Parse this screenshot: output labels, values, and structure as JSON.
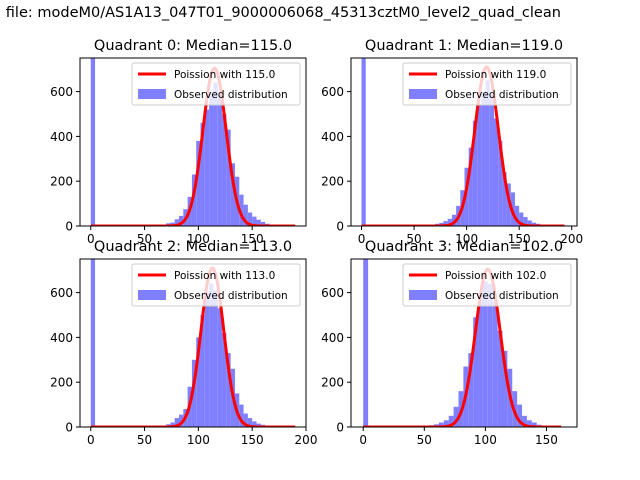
{
  "suptitle": "n file: modeM0/AS1A13_047T01_9000006068_45313cztM0_level2_quad_clean",
  "colors": {
    "poisson": "#ff0000",
    "observed": "#7f7fff",
    "axis": "#000000"
  },
  "chart_data": [
    {
      "type": "bar",
      "title": "Quadrant 0: Median=115.0",
      "legend": [
        "Poission with 115.0",
        "Observed distribution"
      ],
      "legend_position": "top-right",
      "xlim": [
        -10,
        200
      ],
      "ylim": [
        0,
        750
      ],
      "xticks": [
        0,
        50,
        100,
        150
      ],
      "yticks": [
        0,
        200,
        400,
        600
      ],
      "spike": {
        "x": 0,
        "value": 760
      },
      "median": 115,
      "peak": 705,
      "sigma": 10.8,
      "obs": {
        "x": [
          66,
          70,
          74,
          78,
          82,
          86,
          90,
          94,
          98,
          102,
          106,
          110,
          114,
          118,
          122,
          126,
          130,
          134,
          138,
          142,
          146,
          150,
          154,
          158,
          162,
          166,
          170,
          174,
          178,
          182,
          186
        ],
        "values": [
          5,
          12,
          15,
          30,
          45,
          75,
          130,
          230,
          380,
          460,
          520,
          600,
          640,
          600,
          500,
          430,
          280,
          220,
          140,
          95,
          60,
          42,
          28,
          18,
          10,
          6,
          4,
          3,
          2,
          2,
          1
        ]
      },
      "curve_xmax": 190
    },
    {
      "type": "bar",
      "title": "Quadrant 1: Median=119.0",
      "legend": [
        "Poission with 119.0",
        "Observed distribution"
      ],
      "legend_position": "top-right",
      "xlim": [
        -10,
        205
      ],
      "ylim": [
        0,
        750
      ],
      "xticks": [
        0,
        50,
        100,
        150,
        200
      ],
      "yticks": [
        0,
        200,
        400,
        600
      ],
      "spike": {
        "x": 0,
        "value": 760
      },
      "median": 119,
      "peak": 710,
      "sigma": 11.2,
      "obs": {
        "x": [
          66,
          70,
          74,
          78,
          82,
          86,
          90,
          94,
          98,
          102,
          106,
          110,
          114,
          118,
          122,
          126,
          130,
          134,
          138,
          142,
          146,
          150,
          154,
          158,
          162,
          166,
          170,
          174,
          178,
          182,
          186,
          190
        ],
        "values": [
          5,
          10,
          14,
          22,
          32,
          50,
          90,
          160,
          260,
          350,
          470,
          540,
          600,
          650,
          590,
          480,
          380,
          240,
          190,
          150,
          90,
          60,
          40,
          25,
          15,
          10,
          6,
          4,
          3,
          2,
          1,
          1
        ]
      },
      "curve_xmax": 193
    },
    {
      "type": "bar",
      "title": "Quadrant 2: Median=113.0",
      "legend": [
        "Poission with 113.0",
        "Observed distribution"
      ],
      "legend_position": "top-right",
      "xlim": [
        -10,
        200
      ],
      "ylim": [
        0,
        750
      ],
      "xticks": [
        0,
        50,
        100,
        150,
        200
      ],
      "yticks": [
        0,
        200,
        400,
        600
      ],
      "spike": {
        "x": 0,
        "value": 760
      },
      "median": 113,
      "peak": 710,
      "sigma": 10.6,
      "obs": {
        "x": [
          66,
          70,
          74,
          78,
          82,
          86,
          90,
          94,
          98,
          102,
          106,
          110,
          114,
          118,
          122,
          126,
          130,
          134,
          138,
          142,
          146,
          150,
          154,
          158,
          162,
          166,
          170,
          174,
          178,
          182,
          186
        ],
        "values": [
          5,
          12,
          20,
          40,
          55,
          80,
          180,
          300,
          400,
          500,
          600,
          640,
          610,
          530,
          420,
          330,
          260,
          150,
          100,
          60,
          40,
          25,
          15,
          10,
          6,
          4,
          3,
          2,
          2,
          1,
          1
        ]
      },
      "curve_xmax": 190
    },
    {
      "type": "bar",
      "title": "Quadrant 3: Median=102.0",
      "legend": [
        "Poission with 102.0",
        "Observed distribution"
      ],
      "legend_position": "top-right",
      "xlim": [
        -10,
        175
      ],
      "ylim": [
        0,
        750
      ],
      "xticks": [
        0,
        50,
        100,
        150
      ],
      "yticks": [
        0,
        200,
        400,
        600
      ],
      "spike": {
        "x": 0,
        "value": 760
      },
      "median": 102,
      "peak": 705,
      "sigma": 10.1,
      "obs": {
        "x": [
          50,
          54,
          58,
          62,
          66,
          70,
          74,
          78,
          82,
          86,
          90,
          94,
          98,
          102,
          106,
          110,
          114,
          118,
          122,
          126,
          130,
          134,
          138,
          142,
          146,
          150,
          154,
          158
        ],
        "values": [
          3,
          8,
          12,
          20,
          30,
          50,
          90,
          160,
          270,
          330,
          490,
          600,
          650,
          640,
          560,
          430,
          340,
          260,
          160,
          100,
          50,
          30,
          20,
          10,
          6,
          4,
          2,
          1
        ]
      },
      "curve_xmax": 162
    }
  ]
}
